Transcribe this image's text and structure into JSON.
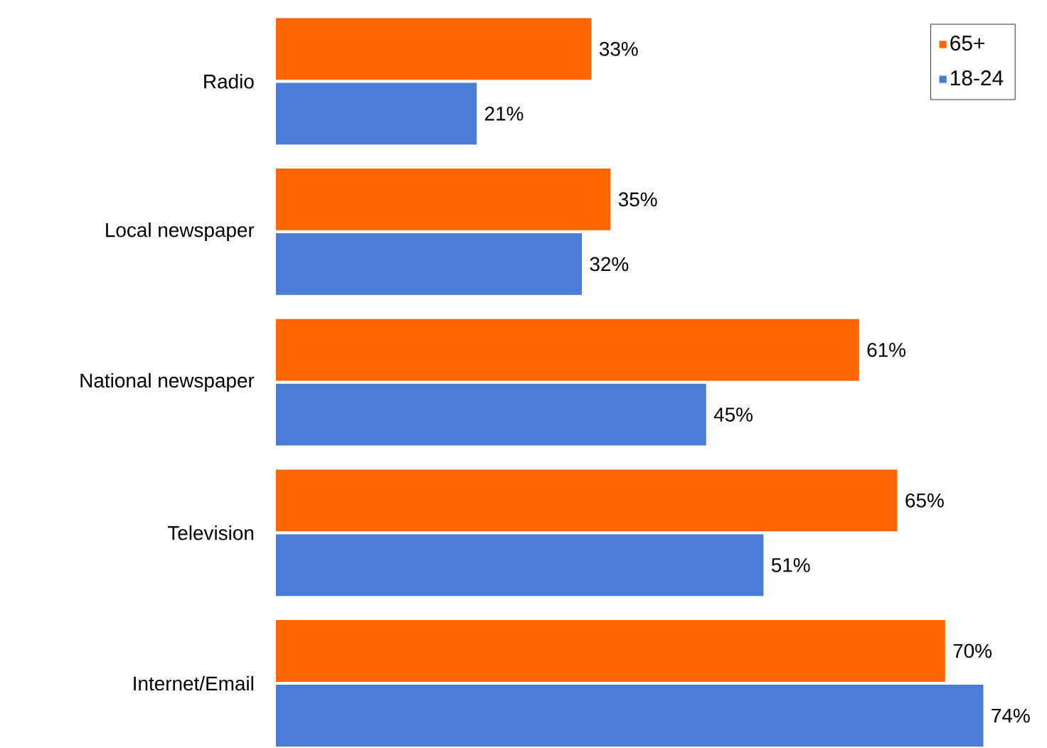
{
  "chart_data": {
    "type": "bar",
    "orientation": "horizontal",
    "categories": [
      "Radio",
      "Local newspaper",
      "National newspaper",
      "Television",
      "Internet/Email"
    ],
    "series": [
      {
        "name": "65+",
        "color": "#ff6600",
        "values": [
          33,
          35,
          61,
          65,
          70
        ],
        "value_labels": [
          "33%",
          "35%",
          "61%",
          "65%",
          "70%"
        ]
      },
      {
        "name": "18-24",
        "color": "#4a7bd6",
        "values": [
          21,
          32,
          45,
          51,
          74
        ],
        "value_labels": [
          "21%",
          "32%",
          "45%",
          "51%",
          "74%"
        ]
      }
    ],
    "legend": "top right"
  }
}
